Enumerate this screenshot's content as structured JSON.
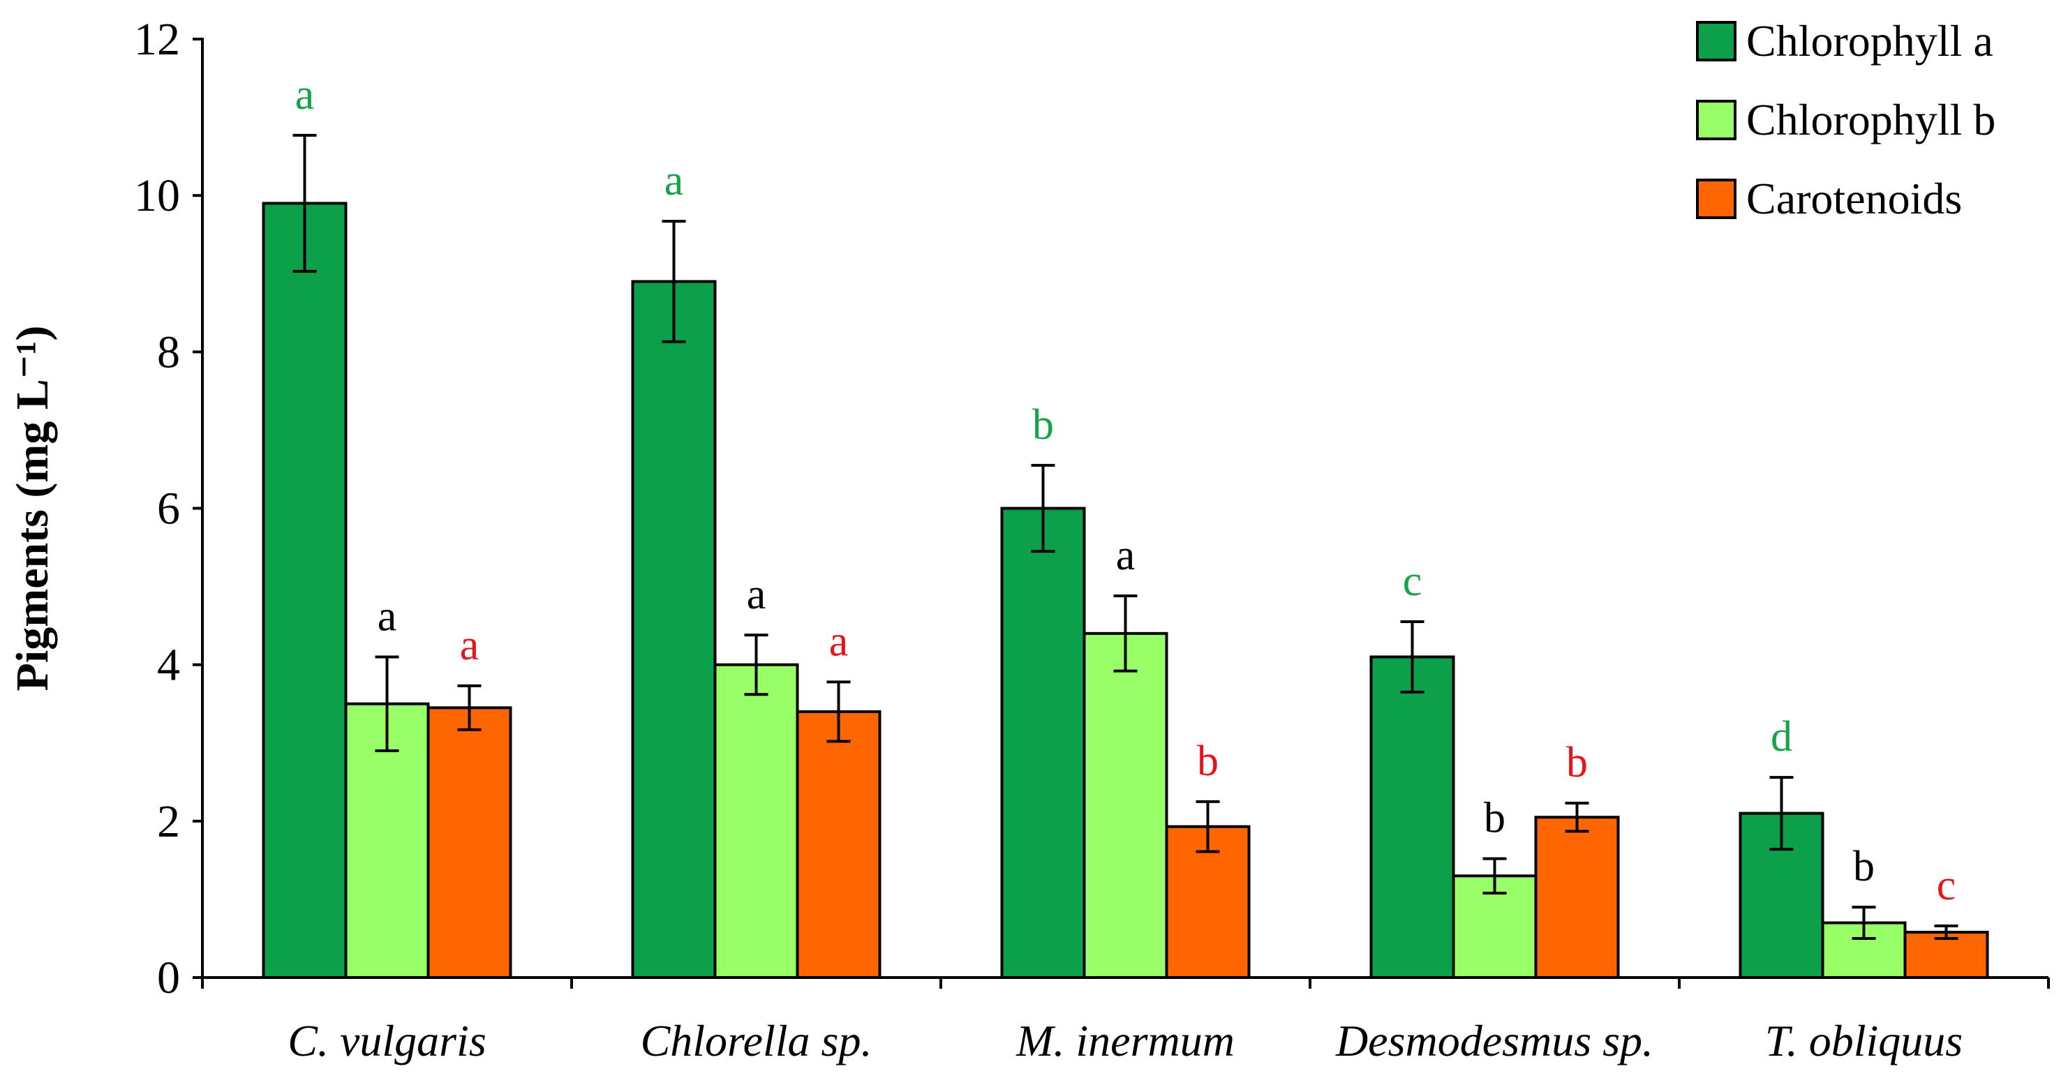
{
  "chart_data": {
    "type": "bar",
    "title": "",
    "xlabel": "",
    "ylabel": "Pigments (mg L⁻¹)",
    "ylim": [
      0,
      12
    ],
    "yticks": [
      0,
      2,
      4,
      6,
      8,
      10,
      12
    ],
    "grid": false,
    "legend_position": "top-right",
    "categories": [
      "C. vulgaris",
      "Chlorella sp.",
      "M. inermum",
      "Desmodesmus sp.",
      "T. obliquus"
    ],
    "series": [
      {
        "name": "Chlorophyll a",
        "color": "#0DA04A",
        "label_color": "#17A34A",
        "values": [
          9.9,
          8.9,
          6.0,
          4.1,
          2.1
        ],
        "errors": [
          0.87,
          0.77,
          0.55,
          0.45,
          0.46
        ],
        "labels": [
          "a",
          "a",
          "b",
          "c",
          "d"
        ]
      },
      {
        "name": "Chlorophyll b",
        "color": "#99FF66",
        "label_color": "#000000",
        "values": [
          3.5,
          4.0,
          4.4,
          1.3,
          0.7
        ],
        "errors": [
          0.6,
          0.38,
          0.48,
          0.22,
          0.2
        ],
        "labels": [
          "a",
          "a",
          "a",
          "b",
          "b"
        ]
      },
      {
        "name": "Carotenoids",
        "color": "#FF6600",
        "label_color": "#E8141B",
        "values": [
          3.45,
          3.4,
          1.93,
          2.05,
          0.58
        ],
        "errors": [
          0.28,
          0.38,
          0.32,
          0.18,
          0.08
        ],
        "labels": [
          "a",
          "a",
          "b",
          "b",
          "c"
        ]
      }
    ]
  }
}
